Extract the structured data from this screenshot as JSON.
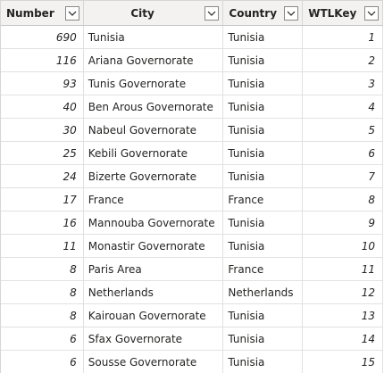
{
  "columns": {
    "number": "Number",
    "city": "City",
    "country": "Country",
    "wtlkey": "WTLKey"
  },
  "icons": {
    "filter": "chevron-down-icon"
  },
  "colors": {
    "header_bg": "#f3f2f1",
    "grid_line": "#e1e1e1",
    "text": "#252423"
  },
  "rows": [
    {
      "number": "690",
      "city": "Tunisia",
      "country": "Tunisia",
      "wtlkey": "1"
    },
    {
      "number": "116",
      "city": "Ariana Governorate",
      "country": "Tunisia",
      "wtlkey": "2"
    },
    {
      "number": "93",
      "city": "Tunis Governorate",
      "country": "Tunisia",
      "wtlkey": "3"
    },
    {
      "number": "40",
      "city": "Ben Arous Governorate",
      "country": "Tunisia",
      "wtlkey": "4"
    },
    {
      "number": "30",
      "city": "Nabeul Governorate",
      "country": "Tunisia",
      "wtlkey": "5"
    },
    {
      "number": "25",
      "city": "Kebili Governorate",
      "country": "Tunisia",
      "wtlkey": "6"
    },
    {
      "number": "24",
      "city": "Bizerte Governorate",
      "country": "Tunisia",
      "wtlkey": "7"
    },
    {
      "number": "17",
      "city": "France",
      "country": "France",
      "wtlkey": "8"
    },
    {
      "number": "16",
      "city": "Mannouba Governorate",
      "country": "Tunisia",
      "wtlkey": "9"
    },
    {
      "number": "11",
      "city": "Monastir Governorate",
      "country": "Tunisia",
      "wtlkey": "10"
    },
    {
      "number": "8",
      "city": "Paris Area",
      "country": "France",
      "wtlkey": "11"
    },
    {
      "number": "8",
      "city": "Netherlands",
      "country": "Netherlands",
      "wtlkey": "12"
    },
    {
      "number": "8",
      "city": "Kairouan Governorate",
      "country": "Tunisia",
      "wtlkey": "13"
    },
    {
      "number": "6",
      "city": "Sfax Governorate",
      "country": "Tunisia",
      "wtlkey": "14"
    },
    {
      "number": "6",
      "city": "Sousse Governorate",
      "country": "Tunisia",
      "wtlkey": "15"
    }
  ]
}
